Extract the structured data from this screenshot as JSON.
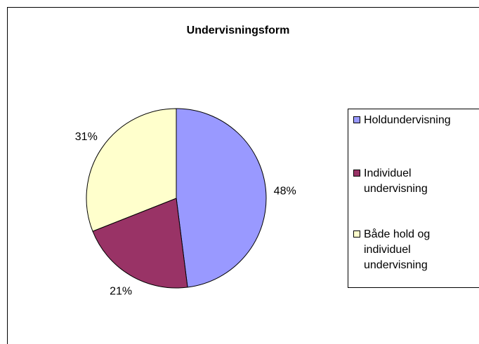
{
  "chart_data": {
    "type": "pie",
    "title": "Undervisningsform",
    "categories": [
      "Holdundervisning",
      "Individuel undervisning",
      "Både hold og individuel undervisning"
    ],
    "values": [
      48,
      21,
      31
    ],
    "value_labels": [
      "48%",
      "21%",
      "31%"
    ],
    "colors": [
      "#9999ff",
      "#993366",
      "#ffffcc"
    ],
    "legend": "right"
  }
}
